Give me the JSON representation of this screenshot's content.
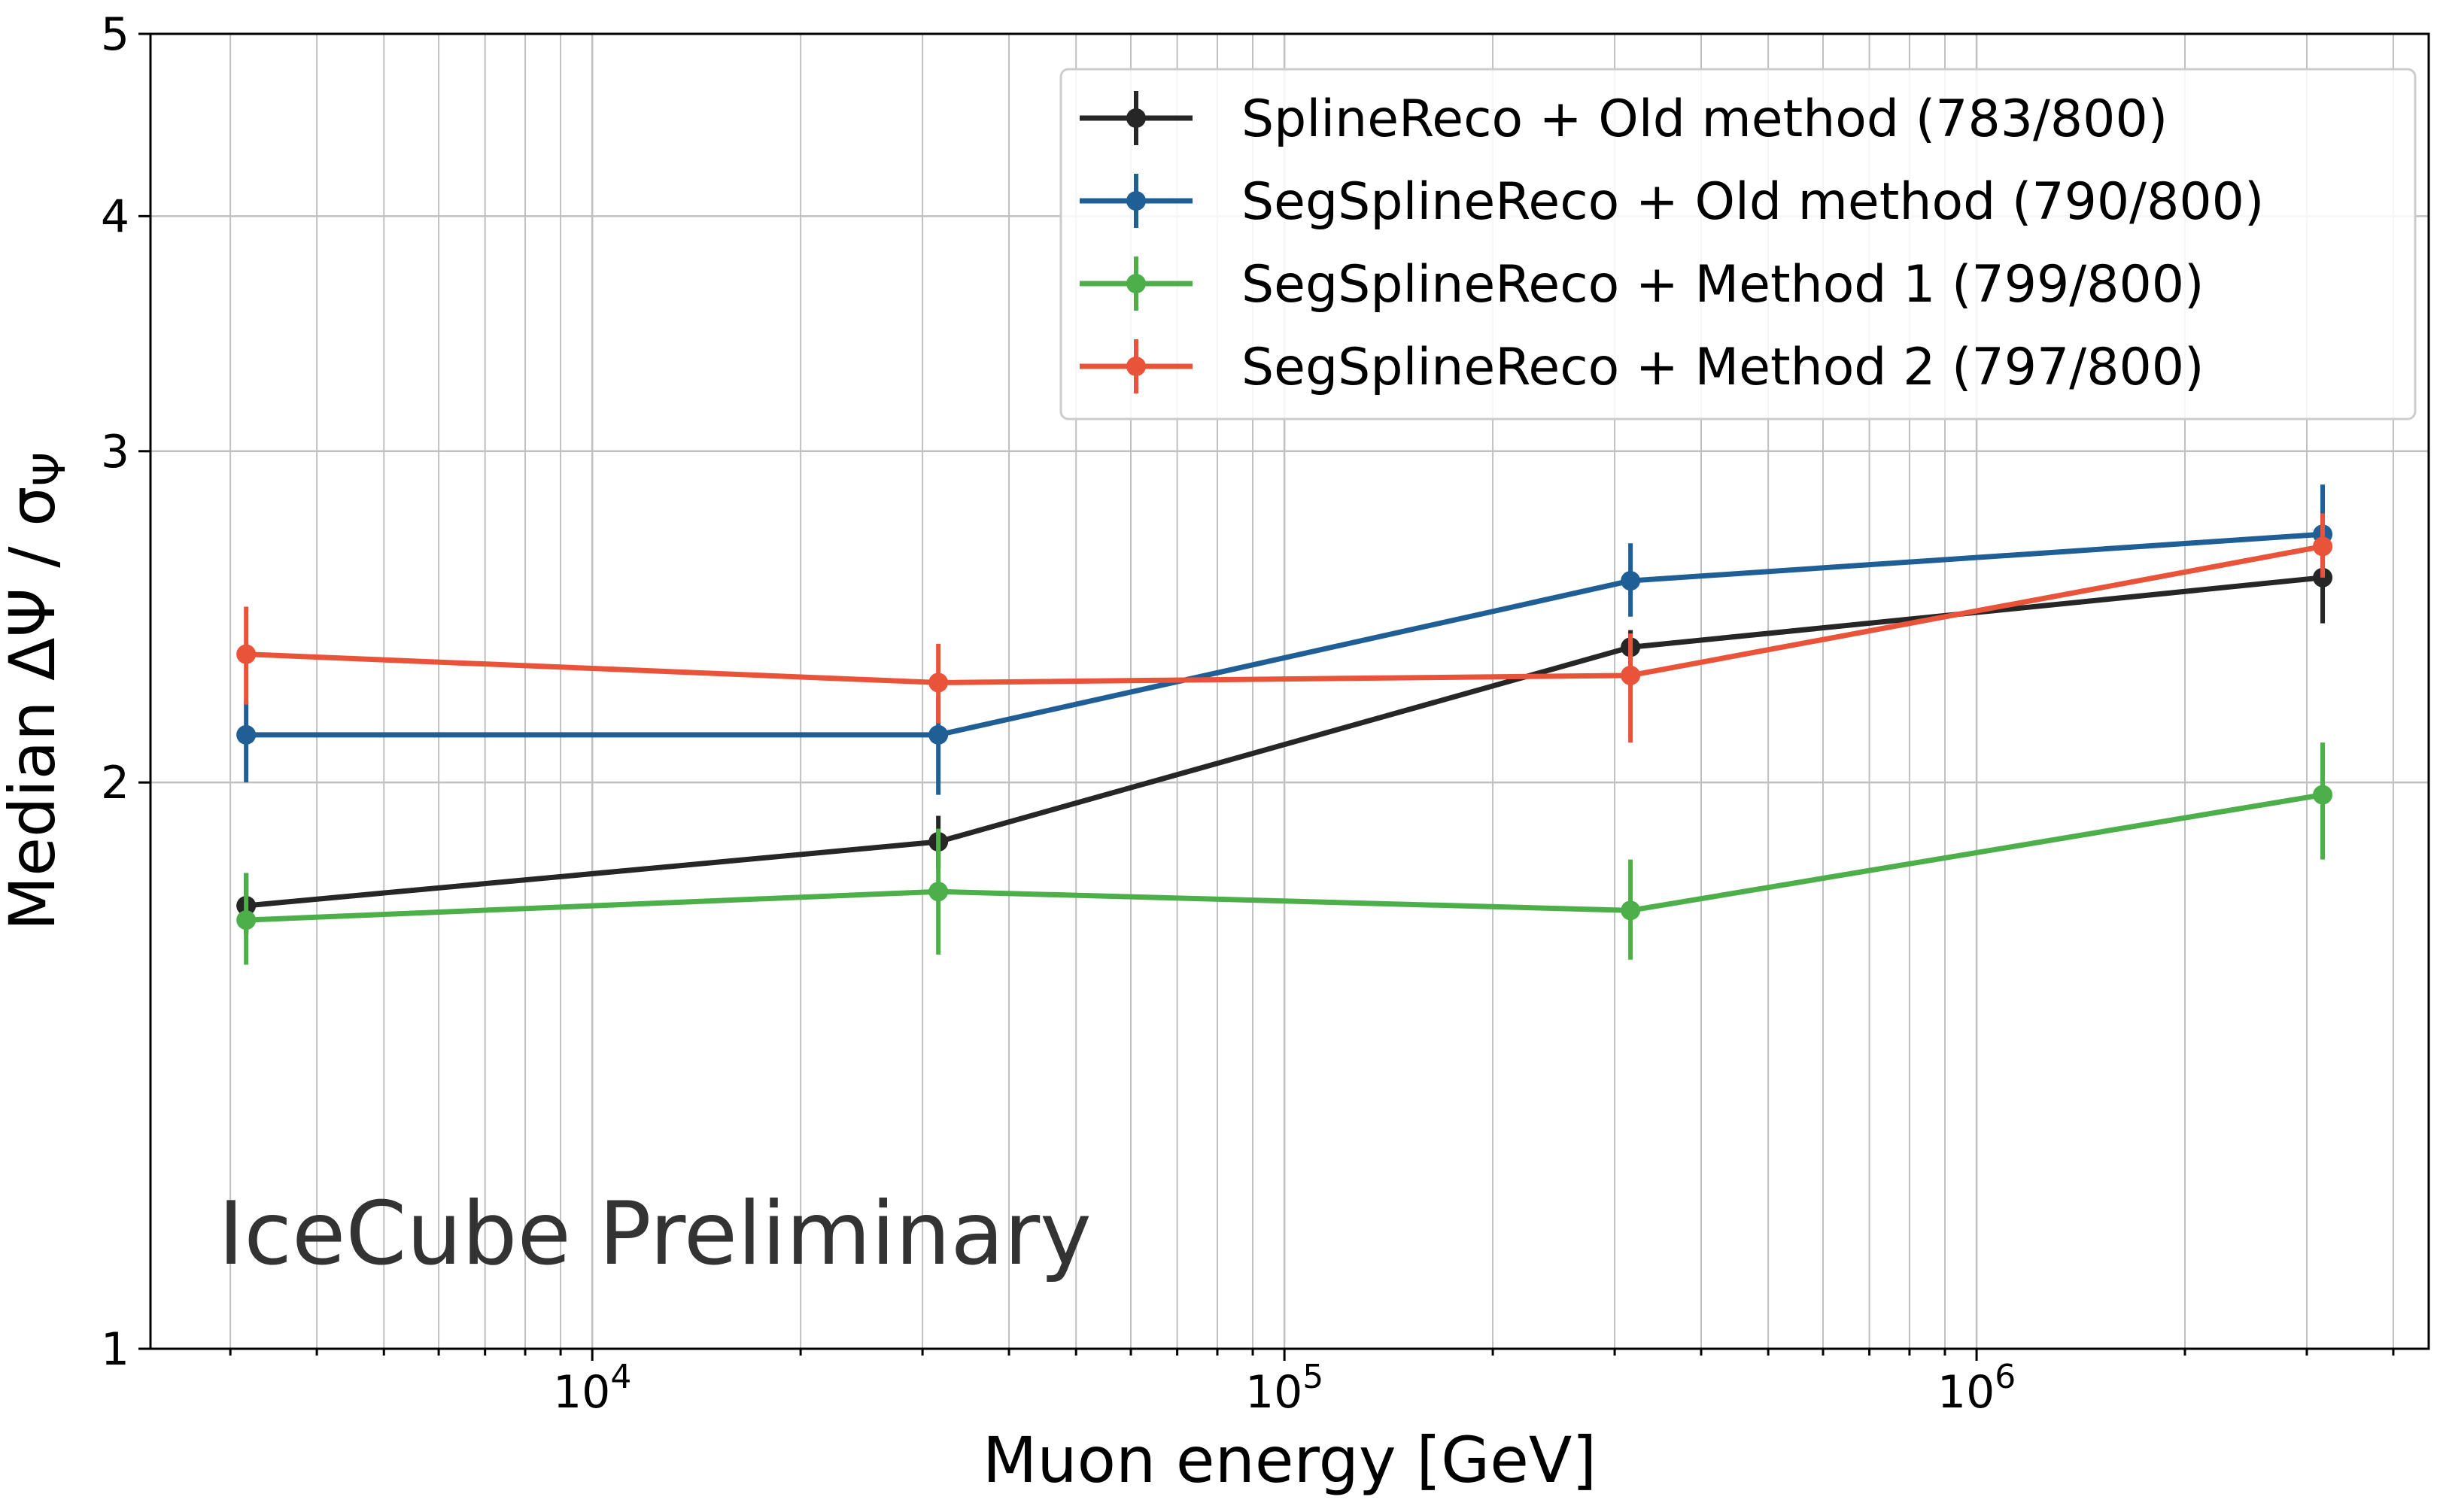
{
  "chart_data": {
    "type": "line",
    "title": "",
    "xlabel": "Muon energy [GeV]",
    "ylabel": "Median ΔΨ / σ",
    "ylabel_subscript": "Ψ",
    "xscale": "log",
    "yscale": "log",
    "xlim": [
      2300,
      4500000
    ],
    "ylim": [
      1,
      5
    ],
    "grid": "major and minor",
    "x_ticks": [
      {
        "value": 10000,
        "base": "10",
        "exp": "4"
      },
      {
        "value": 100000,
        "base": "10",
        "exp": "5"
      },
      {
        "value": 1000000,
        "base": "10",
        "exp": "6"
      }
    ],
    "y_ticks": [
      {
        "value": 1,
        "label": "1"
      },
      {
        "value": 2,
        "label": "2"
      },
      {
        "value": 3,
        "label": "3"
      },
      {
        "value": 4,
        "label": "4"
      },
      {
        "value": 5,
        "label": "5"
      }
    ],
    "legend_position": "top-right",
    "annotation": "IceCube Preliminary",
    "series": [
      {
        "name": "SplineReco + Old method (783/800)",
        "color": "#262626",
        "x": [
          3162,
          31623,
          316228,
          3162278
        ],
        "y": [
          1.72,
          1.86,
          2.36,
          2.57
        ],
        "err_low": [
          0.06,
          0.06,
          0.05,
          0.14
        ],
        "err_high": [
          0.07,
          0.06,
          0.05,
          0.09
        ]
      },
      {
        "name": "SegSplineReco + Old method (790/800)",
        "color": "#1f5f96",
        "x": [
          3162,
          31623,
          316228,
          3162278
        ],
        "y": [
          2.12,
          2.12,
          2.56,
          2.71
        ],
        "err_low": [
          0.12,
          0.15,
          0.11,
          0.11
        ],
        "err_high": [
          0.09,
          0.1,
          0.12,
          0.17
        ]
      },
      {
        "name": "SegSplineReco + Method 1 (799/800)",
        "color": "#4daf4a",
        "x": [
          3162,
          31623,
          316228,
          3162278
        ],
        "y": [
          1.69,
          1.75,
          1.71,
          1.97
        ],
        "err_low": [
          0.09,
          0.13,
          0.1,
          0.15
        ],
        "err_high": [
          0.1,
          0.14,
          0.11,
          0.13
        ]
      },
      {
        "name": "SegSplineReco + Method 2 (797/800)",
        "color": "#e8533a",
        "x": [
          3162,
          31623,
          316228,
          3162278
        ],
        "y": [
          2.34,
          2.26,
          2.28,
          2.67
        ],
        "err_low": [
          0.14,
          0.11,
          0.18,
          0.1
        ],
        "err_high": [
          0.14,
          0.11,
          0.12,
          0.11
        ]
      }
    ]
  }
}
